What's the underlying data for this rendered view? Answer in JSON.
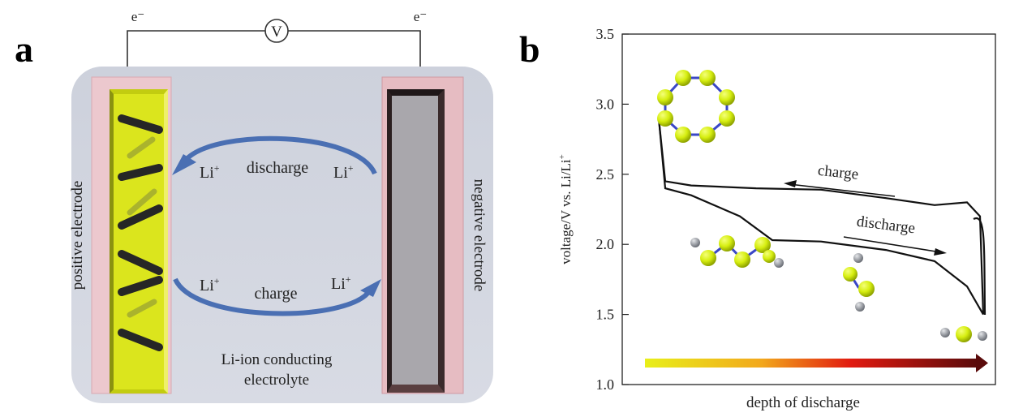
{
  "panel_a": {
    "label": "a",
    "electron_left": "e⁻",
    "electron_right": "e⁻",
    "voltmeter": "V",
    "positive_electrode": "positive electrode",
    "negative_electrode": "negative electrode",
    "discharge": "discharge",
    "charge": "charge",
    "li_ion": "Li",
    "li_sup": "+",
    "electrolyte_line1": "Li-ion conducting",
    "electrolyte_line2": "electrolyte"
  },
  "panel_b": {
    "label": "b",
    "ylabel": "voltage/V vs. Li/Li",
    "ylabel_sup": "+",
    "xlabel": "depth of discharge",
    "charge_label": "charge",
    "discharge_label": "discharge"
  },
  "chart_data": {
    "type": "line",
    "xlabel": "depth of discharge",
    "ylabel": "voltage/V vs. Li/Li+",
    "ylim": [
      1.0,
      3.5
    ],
    "yticks": [
      "1.0",
      "1.5",
      "2.0",
      "2.5",
      "3.0",
      "3.5"
    ],
    "series": [
      {
        "name": "charge",
        "x": [
          0,
          0.02,
          0.1,
          0.3,
          0.5,
          0.7,
          0.85,
          0.95,
          0.99,
          1.0
        ],
        "y": [
          2.9,
          2.45,
          2.42,
          2.4,
          2.39,
          2.33,
          2.28,
          2.3,
          2.2,
          1.5
        ]
      },
      {
        "name": "discharge",
        "x": [
          0,
          0.02,
          0.1,
          0.25,
          0.35,
          0.5,
          0.7,
          0.85,
          0.95,
          1.0
        ],
        "y": [
          2.9,
          2.4,
          2.35,
          2.2,
          2.03,
          2.02,
          1.96,
          1.88,
          1.7,
          1.5
        ]
      }
    ],
    "colors": {
      "line": "#111111",
      "gradient_start": "#e8ef1a",
      "gradient_mid": "#e11a10",
      "gradient_end": "#5a0b0b",
      "sulfur": "#d6ee10",
      "bond": "#3a47c6",
      "lithium": "#8a8f98"
    }
  }
}
